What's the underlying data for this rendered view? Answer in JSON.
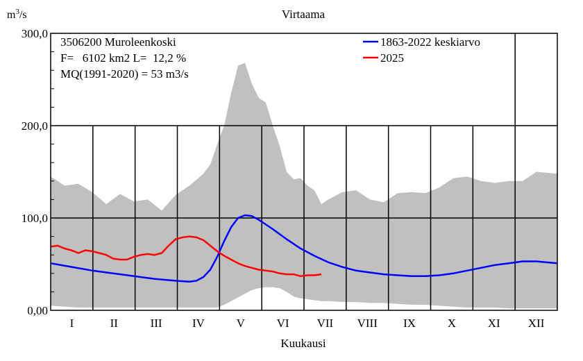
{
  "chart_data": {
    "type": "area",
    "title": "Virtaama",
    "ylabel_prefix": "m",
    "ylabel_exp": "3",
    "ylabel_suffix": "/s",
    "xlabel": "Kuukausi",
    "ylim": [
      0,
      300
    ],
    "yticks": [
      "0,00",
      "100,0",
      "200,0",
      "300,0"
    ],
    "yticks_values": [
      0,
      100,
      200,
      300
    ],
    "months": [
      "I",
      "II",
      "III",
      "IV",
      "V",
      "VI",
      "VII",
      "VIII",
      "IX",
      "X",
      "XI",
      "XII"
    ],
    "info": {
      "station": "3506200 Muroleenkoski",
      "area_line": "F=   6102 km2 L=  12,2 %",
      "mq_line": "MQ(1991-2020) = 53 m3/s"
    },
    "legend": {
      "position": "top-right",
      "items": [
        {
          "label": "1863-2022 keskiarvo",
          "color": "#0000ff"
        },
        {
          "label": "2025",
          "color": "#ff0000"
        }
      ]
    },
    "envelope": {
      "color": "#c0c0c0",
      "day": [
        0,
        10,
        20,
        30,
        40,
        50,
        60,
        70,
        80,
        90,
        100,
        110,
        115,
        120,
        125,
        130,
        135,
        140,
        145,
        150,
        155,
        160,
        165,
        170,
        175,
        180,
        185,
        190,
        195,
        200,
        210,
        220,
        230,
        240,
        250,
        260,
        270,
        280,
        290,
        300,
        310,
        320,
        330,
        340,
        350,
        365
      ],
      "max": [
        145,
        135,
        137,
        128,
        115,
        126,
        118,
        120,
        108,
        125,
        135,
        148,
        158,
        180,
        200,
        235,
        265,
        268,
        245,
        230,
        225,
        200,
        178,
        150,
        142,
        143,
        135,
        130,
        115,
        120,
        128,
        130,
        120,
        117,
        127,
        128,
        127,
        133,
        143,
        145,
        140,
        138,
        140,
        140,
        150,
        148
      ],
      "min": [
        5,
        4,
        3,
        3,
        3,
        3,
        3,
        3,
        3,
        3,
        3,
        3,
        3,
        3,
        6,
        10,
        14,
        18,
        22,
        24,
        25,
        25,
        24,
        20,
        15,
        13,
        12,
        11,
        10,
        10,
        9,
        9,
        8,
        8,
        7,
        6,
        6,
        5,
        4,
        3,
        3,
        3,
        2,
        2,
        2,
        2
      ]
    },
    "series": [
      {
        "name": "1863-2022 keskiarvo",
        "color": "#0000ff",
        "day": [
          0,
          15,
          30,
          45,
          60,
          75,
          90,
          100,
          105,
          110,
          115,
          120,
          125,
          130,
          135,
          140,
          145,
          150,
          160,
          170,
          180,
          190,
          200,
          210,
          220,
          230,
          240,
          250,
          260,
          270,
          280,
          290,
          300,
          310,
          320,
          330,
          340,
          350,
          365
        ],
        "values": [
          51,
          47,
          43,
          40,
          37,
          34,
          32,
          31,
          32,
          36,
          44,
          58,
          75,
          90,
          100,
          103,
          102,
          98,
          88,
          77,
          67,
          59,
          52,
          47,
          43,
          41,
          39,
          38,
          37,
          37,
          38,
          40,
          43,
          46,
          49,
          51,
          53,
          53,
          51
        ]
      },
      {
        "name": "2025",
        "color": "#ff0000",
        "day": [
          0,
          5,
          10,
          15,
          20,
          25,
          30,
          35,
          40,
          45,
          50,
          55,
          60,
          65,
          70,
          75,
          80,
          85,
          90,
          95,
          100,
          105,
          110,
          115,
          120,
          125,
          130,
          135,
          140,
          145,
          150,
          155,
          160,
          165,
          170,
          175,
          180,
          185,
          190,
          195
        ],
        "values": [
          69,
          70,
          67,
          65,
          62,
          65,
          64,
          62,
          60,
          56,
          55,
          55,
          58,
          60,
          61,
          60,
          62,
          70,
          77,
          79,
          80,
          79,
          76,
          70,
          64,
          59,
          55,
          51,
          48,
          46,
          44,
          43,
          42,
          40,
          39,
          39,
          37,
          38,
          38,
          39
        ]
      }
    ]
  }
}
